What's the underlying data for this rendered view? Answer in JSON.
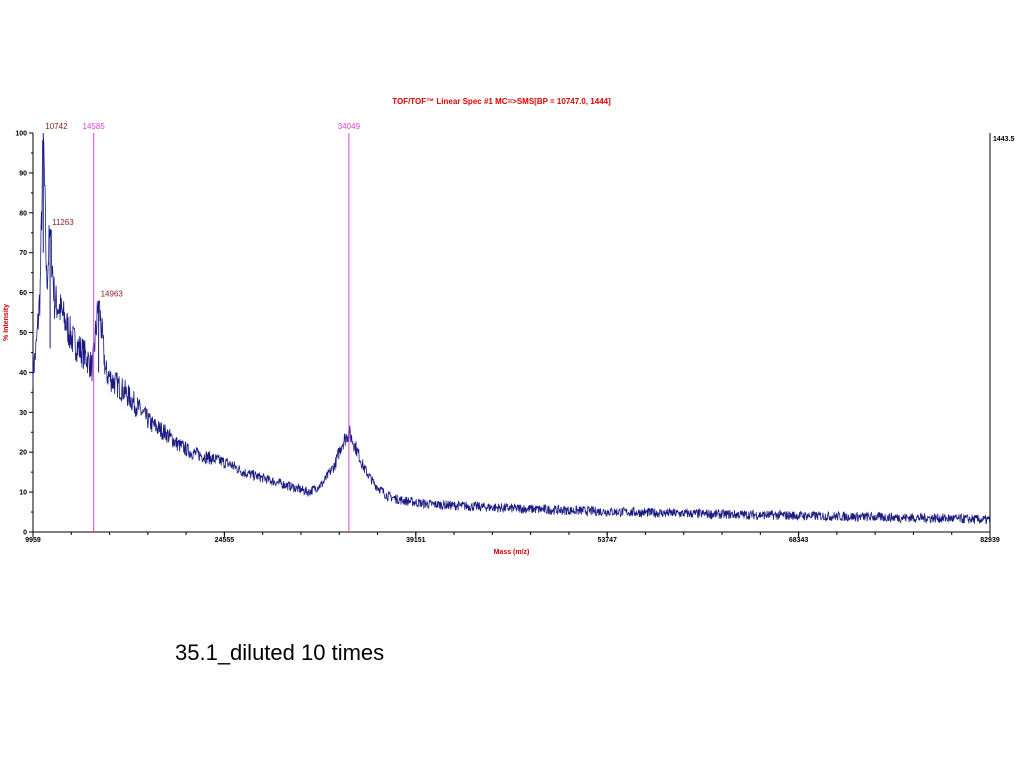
{
  "chart_data": {
    "type": "line",
    "title": "TOF/TOF™ Linear Spec #1 MC=>SMS[BP = 10747.0, 1444]",
    "xlabel": "Mass (m/z)",
    "ylabel": "% Intensity",
    "xlim": [
      9959,
      82939
    ],
    "ylim": [
      0,
      100
    ],
    "x_ticks": [
      "9959",
      "24555",
      "39151",
      "53747",
      "68343",
      "82939"
    ],
    "y_ticks": [
      "0",
      "10",
      "20",
      "30",
      "40",
      "50",
      "60",
      "70",
      "80",
      "90",
      "100"
    ],
    "right_axis_label": "1443.5",
    "grid": false,
    "colors": {
      "trace": "#1a1a80",
      "title": "#e00000",
      "axis_label": "#d00000",
      "peak_label": "#8b1a1a",
      "marker": "#e040e0"
    },
    "markers": [
      {
        "x": 14585,
        "label": "14585"
      },
      {
        "x": 34049,
        "label": "34049"
      }
    ],
    "peaks": [
      {
        "x": 10742,
        "y": 100,
        "label": "10742"
      },
      {
        "x": 11263,
        "y": 76,
        "label": "11263"
      },
      {
        "x": 14963,
        "y": 58,
        "label": "14963"
      }
    ],
    "series": [
      {
        "values_x": [
          9959,
          10200,
          10500,
          10742,
          11000,
          11263,
          11600,
          12000,
          12500,
          13000,
          13500,
          14000,
          14500,
          14963,
          15500,
          16000,
          17000,
          18000,
          19000,
          20000,
          21000,
          22000,
          23000,
          24000,
          25000,
          26000,
          27000,
          28000,
          29000,
          30000,
          31000,
          32000,
          33000,
          33500,
          34049,
          34600,
          35200,
          36000,
          37000,
          38000,
          40000,
          43000,
          46000,
          50000,
          55000,
          60000,
          65000,
          70000,
          75000,
          80000,
          82939
        ],
        "values_y": [
          40,
          46,
          60,
          100,
          62,
          76,
          58,
          56,
          52,
          48,
          46,
          44,
          41,
          58,
          40,
          38,
          35,
          31,
          27,
          25,
          22,
          20,
          19,
          18,
          17,
          15,
          14,
          13,
          12,
          11,
          10,
          12,
          17,
          22,
          25,
          21,
          16,
          12,
          9,
          8,
          7,
          6.5,
          6,
          5.5,
          5,
          4.6,
          4.3,
          4,
          3.7,
          3.4,
          3
        ]
      }
    ]
  },
  "caption": "35.1_diluted 10 times"
}
